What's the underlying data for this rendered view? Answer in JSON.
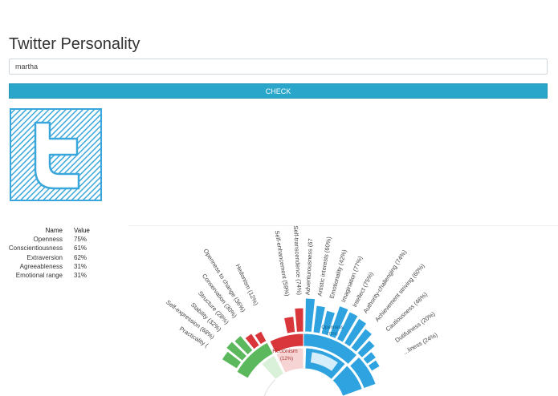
{
  "app": {
    "title": "Twitter Personality"
  },
  "search": {
    "value": "martha",
    "placeholder": ""
  },
  "actions": {
    "check_label": "CHECK"
  },
  "logo": {
    "icon": "twitter-logo-icon",
    "color": "#3aa7dc"
  },
  "table": {
    "headers": {
      "name": "Name",
      "value": "Value"
    },
    "rows": [
      {
        "name": "Openness",
        "value": "75%"
      },
      {
        "name": "Conscientiousness",
        "value": "61%"
      },
      {
        "name": "Extraversion",
        "value": "62%"
      },
      {
        "name": "Agreeableness",
        "value": "31%"
      },
      {
        "name": "Emotional range",
        "value": "31%"
      }
    ]
  },
  "sunburst": {
    "colors": {
      "blue": "#2ea3e0",
      "light_blue": "#d6eefa",
      "red": "#d8363a",
      "light_red": "#f7d4d4",
      "green": "#5cb85c",
      "light_green": "#d9f0d9"
    },
    "inner_labels": [
      {
        "text": "Openness",
        "sub": "(75%)"
      },
      {
        "text": "Hedonism",
        "sub": "(12%)"
      }
    ],
    "labels": [
      "Practicality (",
      "Self-expression (68%)",
      "Stability (32%)",
      "Structure (28%)",
      "Conservation (30%)",
      "Openness to change (36%)",
      "Hedonism (12%)",
      "Self-enhancement (59%)",
      "Self-transcendence (74%)",
      "Adventurousness (67",
      "Artistic interests (60%)",
      "Emotionality (42%)",
      "Imagination (77%)",
      "Intellect (75%)",
      "Authority-challenging (74%)",
      "Achievement striving (60%)",
      "Cautiousness (46%)",
      "Dutifulness (20%)",
      "...liness (24%)"
    ]
  }
}
